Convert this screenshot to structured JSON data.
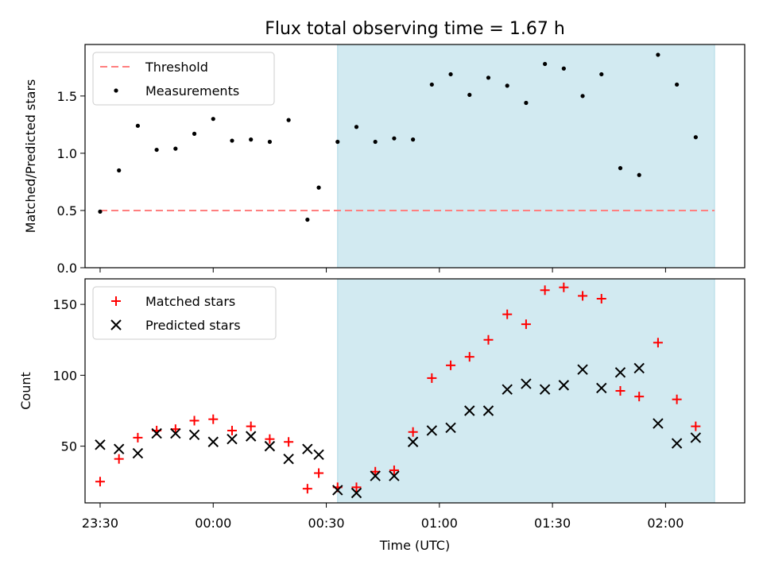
{
  "chart_data": {
    "title": "Flux total observing time = 1.67 h",
    "xlabel": "Time (UTC)",
    "x_tick_labels": [
      "23:30",
      "00:00",
      "00:30",
      "01:00",
      "01:30",
      "02:00"
    ],
    "x_tick_minutes": [
      0,
      30,
      60,
      90,
      120,
      150
    ],
    "x_range_minutes": [
      -4,
      171
    ],
    "shaded_region_minutes": [
      63,
      163
    ],
    "shaded_color": "#add8e6",
    "x_minutes": [
      0,
      5,
      10,
      15,
      20,
      25,
      30,
      35,
      40,
      45,
      50,
      55,
      58,
      63,
      68,
      73,
      78,
      83,
      88,
      93,
      98,
      103,
      108,
      113,
      118,
      123,
      128,
      133,
      138,
      143,
      148,
      153,
      158,
      163
    ],
    "panels": [
      {
        "type": "scatter",
        "ylabel": "Matched/Predicted stars",
        "ylim": [
          0,
          1.95
        ],
        "yticks": [
          0.0,
          0.5,
          1.0,
          1.5
        ],
        "ytick_labels": [
          "0.0",
          "0.5",
          "1.0",
          "1.5"
        ],
        "legend_position": "top-left",
        "threshold": {
          "name": "Threshold",
          "value": 0.5,
          "x_from": 0,
          "x_to": 163,
          "color": "#ff7f7f"
        },
        "series": [
          {
            "name": "Measurements",
            "marker": "dot",
            "color": "#000000",
            "values": [
              0.49,
              0.85,
              1.24,
              1.03,
              1.04,
              1.17,
              1.3,
              1.11,
              1.12,
              1.1,
              1.29,
              0.42,
              0.7,
              1.1,
              1.23,
              1.1,
              1.13,
              1.12,
              1.6,
              1.69,
              1.51,
              1.66,
              1.59,
              1.44,
              1.78,
              1.74,
              1.5,
              1.69,
              0.87,
              0.81,
              1.86,
              1.6,
              1.14,
              null
            ]
          }
        ]
      },
      {
        "type": "scatter",
        "ylabel": "Count",
        "ylim": [
          10,
          168
        ],
        "yticks": [
          50,
          100,
          150
        ],
        "ytick_labels": [
          "50",
          "100",
          "150"
        ],
        "legend_position": "top-left",
        "series": [
          {
            "name": "Matched stars",
            "marker": "plus",
            "color": "#ff0000",
            "values": [
              25,
              41,
              56,
              61,
              62,
              68,
              69,
              61,
              64,
              55,
              53,
              20,
              31,
              21,
              21,
              32,
              33,
              60,
              98,
              107,
              113,
              125,
              143,
              136,
              160,
              162,
              156,
              154,
              89,
              85,
              123,
              83,
              64,
              null
            ]
          },
          {
            "name": "Predicted stars",
            "marker": "x",
            "color": "#000000",
            "values": [
              51,
              48,
              45,
              59,
              59,
              58,
              53,
              55,
              57,
              50,
              41,
              48,
              44,
              19,
              17,
              29,
              29,
              53,
              61,
              63,
              75,
              75,
              90,
              94,
              90,
              93,
              104,
              91,
              102,
              105,
              66,
              52,
              56,
              null
            ]
          }
        ]
      }
    ]
  }
}
